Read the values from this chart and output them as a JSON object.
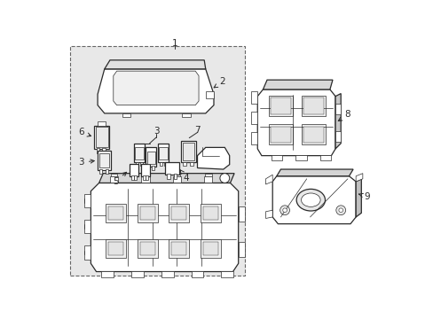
{
  "fig_bg": "#ffffff",
  "box_bg": "#e8e8e8",
  "lc": "#2a2a2a",
  "lw_main": 0.9,
  "lw_thin": 0.5,
  "label_fs": 7.5
}
